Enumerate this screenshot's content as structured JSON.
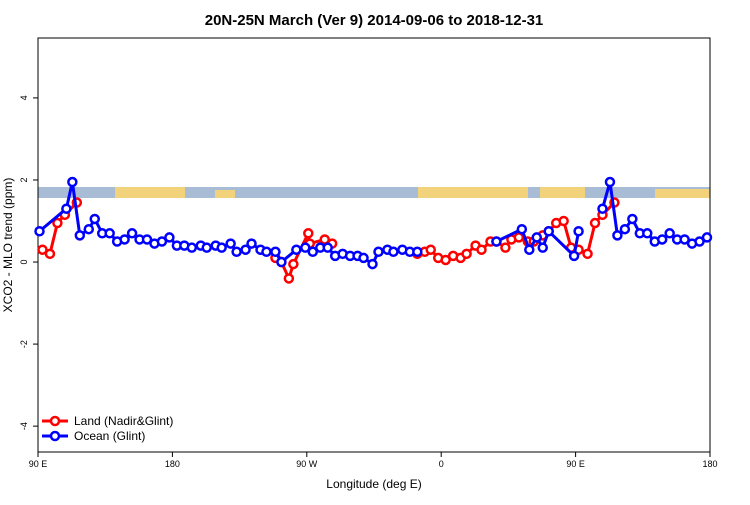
{
  "chart_data": {
    "type": "line",
    "title": "20N-25N March (Ver 9)   2014-09-06 to 2018-12-31",
    "xlabel": "Longitude (deg E)",
    "ylabel": "XCO2 - MLO trend (ppm)",
    "xlim": [
      90,
      540
    ],
    "ylim": [
      -4.63,
      5.46
    ],
    "xticks": [
      {
        "value": 90,
        "label": "90 E"
      },
      {
        "value": 180,
        "label": "180"
      },
      {
        "value": 270,
        "label": "90 W"
      },
      {
        "value": 360,
        "label": "0"
      },
      {
        "value": 450,
        "label": "90 E"
      },
      {
        "value": 540,
        "label": "180"
      }
    ],
    "yticks": [
      -4,
      -2,
      0,
      2,
      4
    ],
    "legend": "bottom-left",
    "series": [
      {
        "name": "Land (Nadir&Glint)",
        "color": "#ff0000",
        "x": [
          93,
          98,
          103,
          108,
          116,
          null,
          249,
          253,
          258,
          261,
          271,
          272,
          282,
          287,
          null,
          344,
          349,
          353,
          358,
          363,
          368,
          373,
          377,
          383,
          387,
          393,
          397,
          403,
          407,
          412,
          418,
          422,
          428,
          432,
          437,
          442,
          447,
          452,
          458,
          463,
          468,
          476
        ],
        "values": [
          0.3,
          0.2,
          0.95,
          1.15,
          1.45,
          null,
          0.1,
          0.0,
          -0.4,
          -0.05,
          0.7,
          0.45,
          0.55,
          0.45,
          null,
          0.2,
          0.25,
          0.3,
          0.1,
          0.05,
          0.15,
          0.1,
          0.2,
          0.4,
          0.3,
          0.5,
          0.5,
          0.35,
          0.55,
          0.6,
          0.5,
          0.5,
          0.65,
          0.75,
          0.95,
          1.0,
          0.35,
          0.3,
          0.2,
          0.95,
          1.15,
          1.45
        ]
      },
      {
        "name": "Ocean (Glint)",
        "color": "#0000ff",
        "x": [
          91,
          109,
          113,
          118,
          124,
          128,
          133,
          138,
          143,
          148,
          153,
          158,
          163,
          168,
          173,
          178,
          183,
          188,
          193,
          199,
          203,
          209,
          213,
          219,
          223,
          229,
          233,
          239,
          243,
          249,
          253,
          263,
          269,
          274,
          279,
          284,
          289,
          294,
          299,
          304,
          308,
          314,
          318,
          324,
          328,
          334,
          339,
          344,
          null,
          397,
          414,
          419,
          424,
          428,
          432,
          449,
          452,
          null,
          468,
          473,
          478,
          483,
          488,
          493,
          498,
          503,
          508,
          513,
          518,
          523,
          528,
          533,
          538
        ],
        "values": [
          0.75,
          1.3,
          1.95,
          0.65,
          0.8,
          1.05,
          0.7,
          0.7,
          0.5,
          0.55,
          0.7,
          0.55,
          0.55,
          0.45,
          0.5,
          0.6,
          0.4,
          0.4,
          0.35,
          0.4,
          0.35,
          0.4,
          0.35,
          0.45,
          0.25,
          0.3,
          0.45,
          0.3,
          0.25,
          0.25,
          0.0,
          0.3,
          0.35,
          0.25,
          0.35,
          0.35,
          0.15,
          0.2,
          0.15,
          0.15,
          0.1,
          -0.05,
          0.25,
          0.3,
          0.25,
          0.3,
          0.25,
          0.25,
          null,
          0.5,
          0.8,
          0.3,
          0.6,
          0.35,
          0.75,
          0.15,
          0.75,
          null,
          1.3,
          1.95,
          0.65,
          0.8,
          1.05,
          0.7,
          0.7,
          0.5,
          0.55,
          0.7,
          0.55,
          0.55,
          0.45,
          0.5,
          0.6
        ]
      }
    ]
  }
}
